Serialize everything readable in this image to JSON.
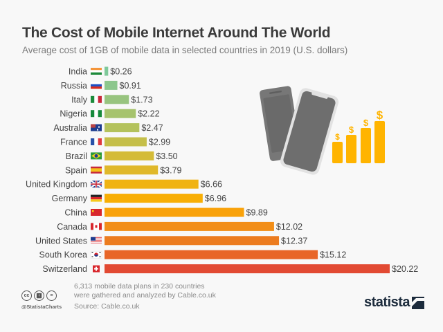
{
  "chart_data": {
    "type": "bar",
    "orientation": "horizontal",
    "title": "The Cost of Mobile Internet Around The World",
    "subtitle": "Average cost of 1GB of mobile data in selected countries in 2019 (U.S. dollars)",
    "xlabel": "",
    "ylabel": "",
    "xlim": [
      0,
      20.22
    ],
    "grid": false,
    "categories": [
      "India",
      "Russia",
      "Italy",
      "Nigeria",
      "Australia",
      "France",
      "Brazil",
      "Spain",
      "United Kingdom",
      "Germany",
      "China",
      "Canada",
      "United States",
      "South Korea",
      "Switzerland"
    ],
    "values": [
      0.26,
      0.91,
      1.73,
      2.22,
      2.47,
      2.99,
      3.5,
      3.79,
      6.66,
      6.96,
      9.89,
      12.02,
      12.37,
      15.12,
      20.22
    ],
    "value_labels": [
      "$0.26",
      "$0.91",
      "$1.73",
      "$2.22",
      "$2.47",
      "$2.99",
      "$3.50",
      "$3.79",
      "$6.66",
      "$6.96",
      "$9.89",
      "$12.02",
      "$12.37",
      "$15.12",
      "$20.22"
    ],
    "colors": [
      "#7fc99a",
      "#8cc78d",
      "#98c47f",
      "#a6c36d",
      "#b4c25c",
      "#c5bf4a",
      "#d4bb38",
      "#e0b82a",
      "#f0b312",
      "#f8ae04",
      "#f9a20a",
      "#f28e18",
      "#ec7c20",
      "#e86628",
      "#e24a33"
    ],
    "flags": [
      "india-flag",
      "russia-flag",
      "italy-flag",
      "nigeria-flag",
      "australia-flag",
      "france-flag",
      "brazil-flag",
      "spain-flag",
      "uk-flag",
      "germany-flag",
      "china-flag",
      "canada-flag",
      "usa-flag",
      "south-korea-flag",
      "switzerland-flag"
    ]
  },
  "illustration": {
    "phone_color": "#6e6e6e",
    "bars_color": "#ffb400",
    "symbol": "$"
  },
  "footer": {
    "note_line1": "6,313 mobile data plans in 230 countries",
    "note_line2": "were gathered and analyzed by Cable.co.uk",
    "source": "Source: Cable.co.uk",
    "handle": "@StatistaCharts",
    "cc_icons": [
      "cc",
      "by",
      "="
    ],
    "logo": "statista"
  }
}
